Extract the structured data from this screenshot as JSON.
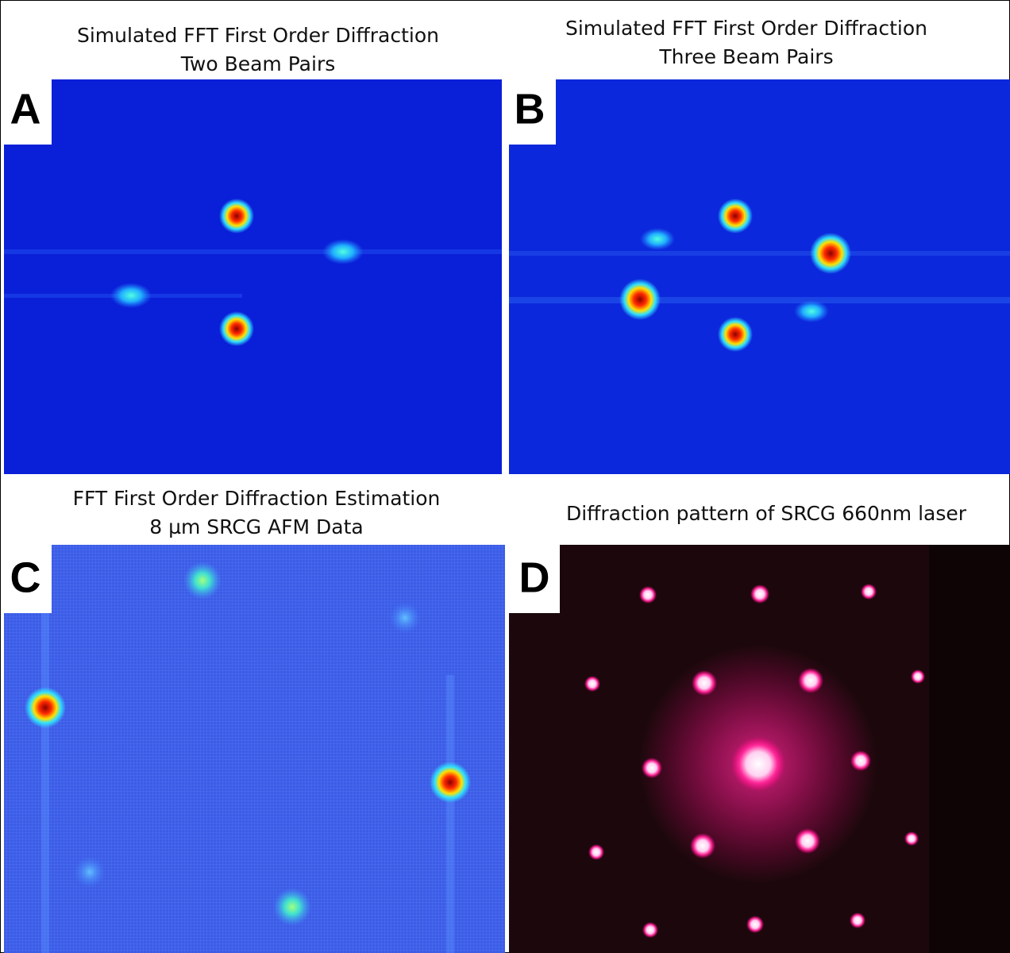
{
  "panels": [
    {
      "letter": "A",
      "title": [
        "Simulated FFT First Order Diffraction",
        "Two Beam Pairs"
      ]
    },
    {
      "letter": "B",
      "title": [
        "Simulated FFT First Order Diffraction",
        "Three Beam Pairs"
      ]
    },
    {
      "letter": "C",
      "title": [
        "FFT First Order Diffraction Estimation",
        "8 µm SRCG AFM Data"
      ]
    },
    {
      "letter": "D",
      "title": [
        "Diffraction pattern of SRCG 660nm laser"
      ]
    }
  ]
}
